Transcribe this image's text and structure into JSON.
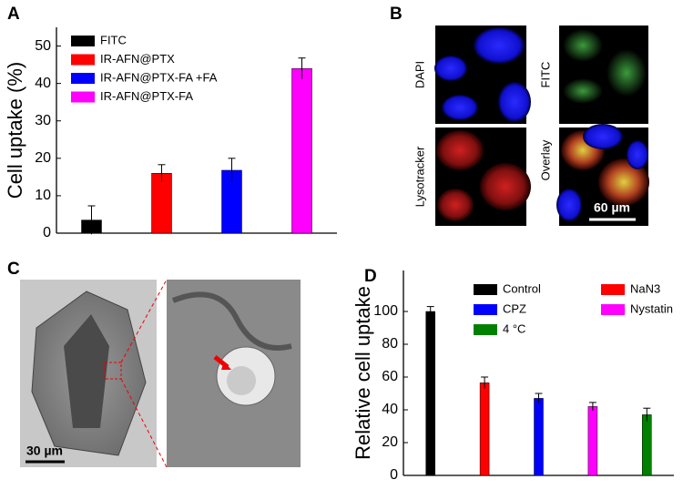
{
  "panels": {
    "a": "A",
    "b": "B",
    "c": "C",
    "d": "D"
  },
  "microscopy": {
    "dapi": "DAPI",
    "fitc": "FITC",
    "lysotracker": "Lysotracker",
    "overlay": "Overlay",
    "scale_b": "60 µm",
    "scale_c": "30 µm"
  },
  "chart_data": [
    {
      "type": "bar",
      "ylabel": "Cell uptake (%)",
      "ylim": [
        0,
        55
      ],
      "yticks": [
        0,
        10,
        20,
        30,
        40,
        50
      ],
      "legend": "upper left",
      "series": [
        {
          "name": "FITC",
          "color": "#000000",
          "values": [
            3.5
          ],
          "errors": [
            3.8
          ]
        },
        {
          "name": "IR-AFN@PTX",
          "color": "#ff0000",
          "values": [
            16
          ],
          "errors": [
            2.3
          ]
        },
        {
          "name": "IR-AFN@PTX-FA +FA",
          "color": "#0000ff",
          "values": [
            16.8
          ],
          "errors": [
            3.2
          ]
        },
        {
          "name": "IR-AFN@PTX-FA",
          "color": "#ff00ff",
          "values": [
            44
          ],
          "errors": [
            2.8
          ]
        }
      ]
    },
    {
      "type": "bar",
      "ylabel": "Relative cell uptake",
      "ylim": [
        0,
        125
      ],
      "yticks": [
        0,
        20,
        40,
        60,
        80,
        100
      ],
      "legend": "upper right",
      "series": [
        {
          "name": "Control",
          "color": "#000000",
          "values": [
            100
          ],
          "errors": [
            3
          ]
        },
        {
          "name": "NaN3",
          "color": "#ff0000",
          "values": [
            56.5
          ],
          "errors": [
            3.5
          ]
        },
        {
          "name": "CPZ",
          "color": "#0000ff",
          "values": [
            47
          ],
          "errors": [
            3
          ]
        },
        {
          "name": "Nystatin",
          "color": "#ff00ff",
          "values": [
            42
          ],
          "errors": [
            2.5
          ]
        },
        {
          "name": "4 °C",
          "color": "#008000",
          "values": [
            37
          ],
          "errors": [
            4
          ]
        }
      ]
    }
  ]
}
